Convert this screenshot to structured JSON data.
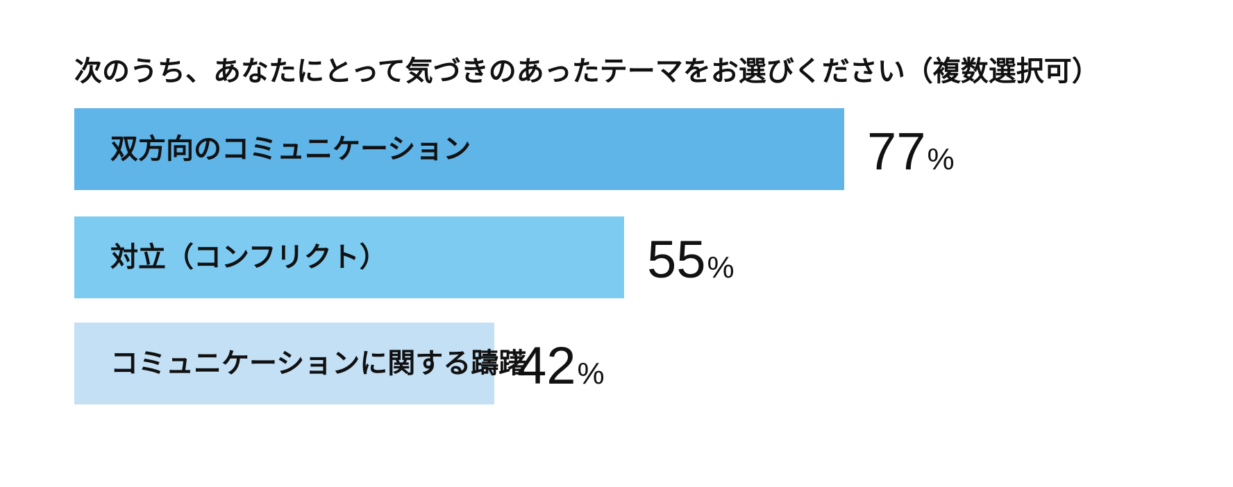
{
  "chart_data": {
    "type": "bar",
    "orientation": "horizontal",
    "title": "次のうち、あなたにとって気づきのあったテーマをお選びください（複数選択可）",
    "categories": [
      "双方向のコミュニケーション",
      "対立（コンフリクト）",
      "コミュニケーションに関する躊躇"
    ],
    "values": [
      77,
      55,
      42
    ],
    "value_labels": [
      "77",
      "55",
      "42"
    ],
    "unit": "%",
    "xlim": [
      0,
      100
    ],
    "colors": [
      "#5fb4e8",
      "#7ecbf2",
      "#c3e0f5"
    ],
    "grid": false
  }
}
